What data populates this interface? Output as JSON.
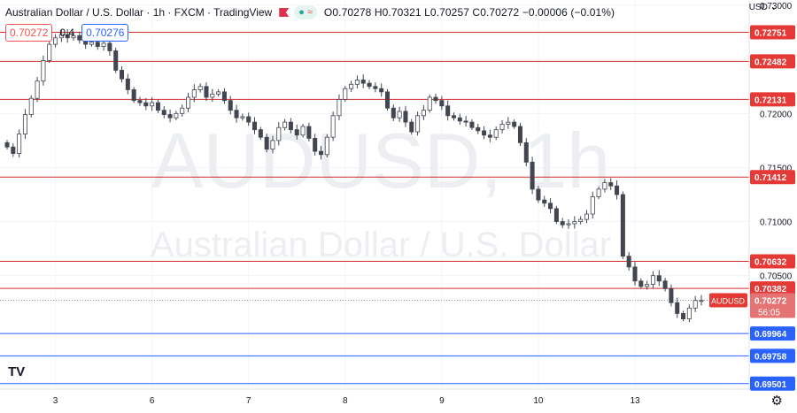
{
  "header": {
    "title": "Australian Dollar / U.S. Dollar · 1h · FXCM · TradingView",
    "ohlc": "O0.70278 H0.70321 L0.70257 C0.70272 −0.00006 (−0.01%)",
    "sell_price": "0.70272",
    "spread": "0.4",
    "buy_price": "0.70276",
    "currency": "USD"
  },
  "watermark": {
    "symbol": "AUDUSD, 1h",
    "name": "Australian Dollar / U.S. Dollar"
  },
  "icons": {
    "logo": "tradingview-logo-icon",
    "settings": "gear-icon",
    "flag": "flag-icon",
    "market_status": "market-open-icon"
  },
  "colors": {
    "up": "#26a69a",
    "down": "#ef5350",
    "candle_body": "#434651",
    "support_line": "#2962ff",
    "resistance_line": "#d32f2f",
    "price_label_bg": "#e53935",
    "last_price_bg": "#e57373"
  },
  "chart_data": {
    "type": "candlestick",
    "symbol": "AUDUSD",
    "timeframe": "1h",
    "ylim": [
      0.6945,
      0.7305
    ],
    "y_ticks": [
      "0.73000",
      "0.72500",
      "0.72000",
      "0.71500",
      "0.71000",
      "0.70500"
    ],
    "x_ticks": [
      "3",
      "6",
      "7",
      "8",
      "9",
      "10",
      "13"
    ],
    "grid": true,
    "resistance_levels": [
      {
        "value": 0.72751,
        "label": "0.72751"
      },
      {
        "value": 0.72482,
        "label": "0.72482"
      },
      {
        "value": 0.72131,
        "label": "0.72131"
      },
      {
        "value": 0.71412,
        "label": "0.71412"
      },
      {
        "value": 0.70632,
        "label": "0.70632"
      },
      {
        "value": 0.70382,
        "label": "0.70382"
      }
    ],
    "support_levels": [
      {
        "value": 0.69964,
        "label": "0.69964"
      },
      {
        "value": 0.69758,
        "label": "0.69758"
      },
      {
        "value": 0.69501,
        "label": "0.69501"
      }
    ],
    "last_price": {
      "value": 0.70272,
      "label": "0.70272",
      "countdown": "56:05",
      "tag": "AUDUSD"
    },
    "close_path": [
      0.7169,
      0.7163,
      0.7181,
      0.7199,
      0.7214,
      0.723,
      0.7249,
      0.7264,
      0.727,
      0.7273,
      0.727,
      0.7272,
      0.7268,
      0.7264,
      0.7266,
      0.7262,
      0.7265,
      0.7258,
      0.724,
      0.7232,
      0.7222,
      0.7212,
      0.721,
      0.7207,
      0.721,
      0.7203,
      0.7199,
      0.7196,
      0.72,
      0.7205,
      0.7215,
      0.7222,
      0.7225,
      0.7215,
      0.7218,
      0.722,
      0.7212,
      0.7203,
      0.7196,
      0.7197,
      0.7192,
      0.7185,
      0.7178,
      0.7167,
      0.7175,
      0.7187,
      0.7192,
      0.7185,
      0.718,
      0.7188,
      0.7177,
      0.7165,
      0.7162,
      0.7178,
      0.7198,
      0.7213,
      0.7223,
      0.7227,
      0.7231,
      0.7228,
      0.7225,
      0.7223,
      0.722,
      0.7205,
      0.7196,
      0.7202,
      0.7192,
      0.7183,
      0.7198,
      0.7203,
      0.7215,
      0.7212,
      0.7207,
      0.7198,
      0.7196,
      0.7193,
      0.7192,
      0.7187,
      0.7184,
      0.718,
      0.7178,
      0.7185,
      0.719,
      0.7192,
      0.7188,
      0.7173,
      0.7155,
      0.713,
      0.712,
      0.7117,
      0.7112,
      0.71,
      0.7097,
      0.7098,
      0.71,
      0.7102,
      0.7107,
      0.7123,
      0.713,
      0.7136,
      0.7133,
      0.7125,
      0.7068,
      0.7058,
      0.7045,
      0.704,
      0.7042,
      0.705,
      0.7045,
      0.7038,
      0.7025,
      0.7015,
      0.701,
      0.702,
      0.7027,
      0.7027
    ],
    "last_candle_ohlc": {
      "open": 0.70278,
      "high": 0.70321,
      "low": 0.70257,
      "close": 0.70272
    }
  }
}
